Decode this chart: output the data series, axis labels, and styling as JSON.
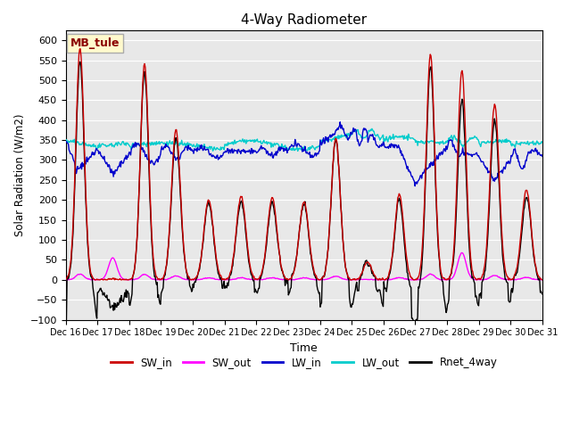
{
  "title": "4-Way Radiometer",
  "xlabel": "Time",
  "ylabel": "Solar Radiation (W/m2)",
  "ylim": [
    -100,
    625
  ],
  "yticks": [
    -100,
    -50,
    0,
    50,
    100,
    150,
    200,
    250,
    300,
    350,
    400,
    450,
    500,
    550,
    600
  ],
  "site_label": "MB_tule",
  "site_label_color": "#8B0000",
  "site_label_bg": "#FFFACD",
  "colors": {
    "SW_in": "#CC0000",
    "SW_out": "#FF00FF",
    "LW_in": "#0000CC",
    "LW_out": "#00CCCC",
    "Rnet_4way": "#000000"
  },
  "line_width": 1.0,
  "bg_color": "#E8E8E8",
  "grid_color": "#FFFFFF",
  "num_days": 15,
  "start_day": 16
}
